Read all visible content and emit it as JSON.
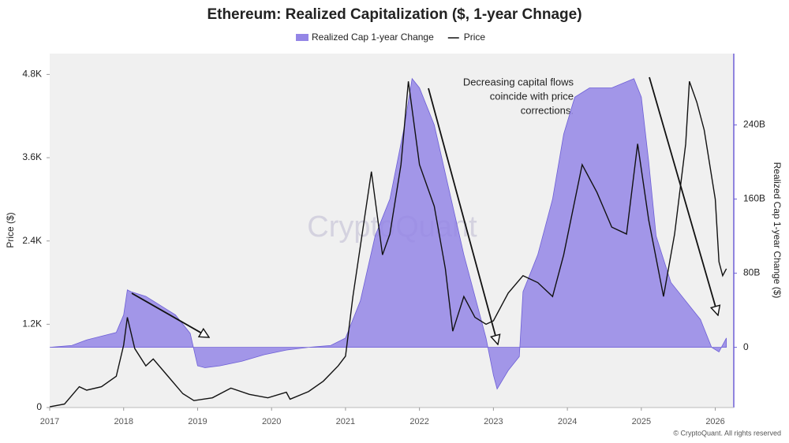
{
  "chart_data": {
    "type": "area_line",
    "title": "Ethereum: Realized Capitalization ($, 1-year Chnage)",
    "ylabel": "Price ($)",
    "y2label": "Realized Cap 1-year Change ($)",
    "watermark": "CryptoQuant",
    "footer": "© CryptoQuant. All rights reserved",
    "annotation": [
      "Decreasing capital flows",
      "coincide with price",
      "corrections."
    ],
    "xlim": [
      2017,
      2026.25
    ],
    "xticks": [
      2017,
      2018,
      2019,
      2020,
      2021,
      2022,
      2023,
      2024,
      2025,
      2026
    ],
    "ylim": [
      0,
      5100
    ],
    "yticks": [
      0,
      {
        "value": 1200,
        "label": "1.2K"
      },
      {
        "value": 2400,
        "label": "2.4K"
      },
      {
        "value": 3600,
        "label": "3.6K"
      },
      {
        "value": 4800,
        "label": "4.8K"
      }
    ],
    "y2lim": [
      -65000000000.0,
      317000000000.0
    ],
    "y2ticks": [
      0,
      {
        "value": 80000000000.0,
        "label": "80B"
      },
      {
        "value": 160000000000.0,
        "label": "160B"
      },
      {
        "value": 240000000000.0,
        "label": "240B"
      }
    ],
    "grid": false,
    "series": [
      {
        "name": "Realized Cap 1-year Change",
        "color": "#9486e6",
        "axis": "y2",
        "kind": "area",
        "x": [
          2017.0,
          2017.3,
          2017.5,
          2017.7,
          2017.9,
          2018.0,
          2018.05,
          2018.1,
          2018.3,
          2018.5,
          2018.7,
          2018.9,
          2019.0,
          2019.1,
          2019.3,
          2019.6,
          2019.9,
          2020.2,
          2020.5,
          2020.8,
          2021.0,
          2021.2,
          2021.4,
          2021.6,
          2021.8,
          2021.9,
          2022.0,
          2022.2,
          2022.4,
          2022.6,
          2022.8,
          2022.9,
          2023.0,
          2023.05,
          2023.2,
          2023.35,
          2023.4,
          2023.6,
          2023.8,
          2023.95,
          2024.1,
          2024.3,
          2024.6,
          2024.9,
          2025.0,
          2025.1,
          2025.2,
          2025.4,
          2025.6,
          2025.8,
          2025.95,
          2026.05,
          2026.15
        ],
        "values": [
          0,
          2000000000.0,
          8000000000.0,
          12000000000.0,
          16000000000.0,
          35000000000.0,
          62000000000.0,
          60000000000.0,
          55000000000.0,
          45000000000.0,
          35000000000.0,
          15000000000.0,
          -20000000000.0,
          -22000000000.0,
          -20000000000.0,
          -15000000000.0,
          -8000000000.0,
          -3000000000.0,
          0,
          2000000000.0,
          10000000000.0,
          50000000000.0,
          120000000000.0,
          160000000000.0,
          240000000000.0,
          290000000000.0,
          280000000000.0,
          240000000000.0,
          170000000000.0,
          100000000000.0,
          40000000000.0,
          10000000000.0,
          -30000000000.0,
          -45000000000.0,
          -25000000000.0,
          -10000000000.0,
          60000000000.0,
          100000000000.0,
          160000000000.0,
          230000000000.0,
          270000000000.0,
          280000000000.0,
          280000000000.0,
          290000000000.0,
          270000000000.0,
          200000000000.0,
          120000000000.0,
          70000000000.0,
          50000000000.0,
          30000000000.0,
          0,
          -5000000000.0,
          10000000000.0
        ]
      },
      {
        "name": "Price",
        "color": "#111111",
        "axis": "y",
        "kind": "line",
        "x": [
          2017.0,
          2017.2,
          2017.4,
          2017.5,
          2017.7,
          2017.9,
          2018.0,
          2018.05,
          2018.15,
          2018.3,
          2018.4,
          2018.6,
          2018.8,
          2018.95,
          2019.2,
          2019.45,
          2019.7,
          2019.95,
          2020.2,
          2020.25,
          2020.5,
          2020.7,
          2020.9,
          2021.0,
          2021.1,
          2021.35,
          2021.5,
          2021.6,
          2021.75,
          2021.85,
          2022.0,
          2022.2,
          2022.35,
          2022.45,
          2022.6,
          2022.75,
          2022.9,
          2023.0,
          2023.2,
          2023.4,
          2023.6,
          2023.8,
          2023.95,
          2024.2,
          2024.4,
          2024.6,
          2024.8,
          2024.95,
          2025.1,
          2025.3,
          2025.45,
          2025.6,
          2025.65,
          2025.75,
          2025.85,
          2026.0,
          2026.05,
          2026.1,
          2026.15
        ],
        "values": [
          10,
          50,
          300,
          250,
          300,
          450,
          900,
          1300,
          850,
          600,
          700,
          450,
          200,
          100,
          140,
          280,
          190,
          140,
          220,
          120,
          230,
          380,
          600,
          740,
          1600,
          3400,
          2200,
          2500,
          3500,
          4700,
          3500,
          2900,
          2000,
          1100,
          1600,
          1300,
          1200,
          1250,
          1650,
          1900,
          1800,
          1600,
          2200,
          3500,
          3100,
          2600,
          2500,
          3800,
          2700,
          1600,
          2500,
          3800,
          4700,
          4400,
          4000,
          3000,
          2100,
          1900,
          2000
        ]
      }
    ]
  }
}
